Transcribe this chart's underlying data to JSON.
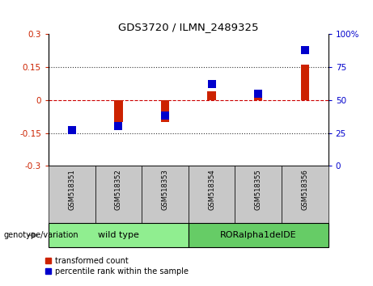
{
  "title": "GDS3720 / ILMN_2489325",
  "samples": [
    "GSM518351",
    "GSM518352",
    "GSM518353",
    "GSM518354",
    "GSM518355",
    "GSM518356"
  ],
  "transformed_count": [
    0.0,
    -0.1,
    -0.1,
    0.04,
    0.03,
    0.16
  ],
  "percentile_rank": [
    27,
    30,
    38,
    62,
    55,
    88
  ],
  "groups": [
    {
      "label": "wild type",
      "samples": [
        0,
        1,
        2
      ],
      "color": "#90EE90"
    },
    {
      "label": "RORalpha1delDE",
      "samples": [
        3,
        4,
        5
      ],
      "color": "#66CC66"
    }
  ],
  "ylim_left": [
    -0.3,
    0.3
  ],
  "ylim_right": [
    0,
    100
  ],
  "yticks_left": [
    -0.3,
    -0.15,
    0,
    0.15,
    0.3
  ],
  "yticks_right": [
    0,
    25,
    50,
    75,
    100
  ],
  "bar_color_red": "#CC2200",
  "bar_color_blue": "#0000CC",
  "hline_color": "#CC0000",
  "dotted_line_color": "#333333",
  "background_plot": "#FFFFFF",
  "label_transformed": "transformed count",
  "label_percentile": "percentile rank within the sample",
  "genotype_label": "genotype/variation",
  "group_box_color": "#C8C8C8",
  "red_bar_width": 0.18,
  "blue_marker_size": 50
}
